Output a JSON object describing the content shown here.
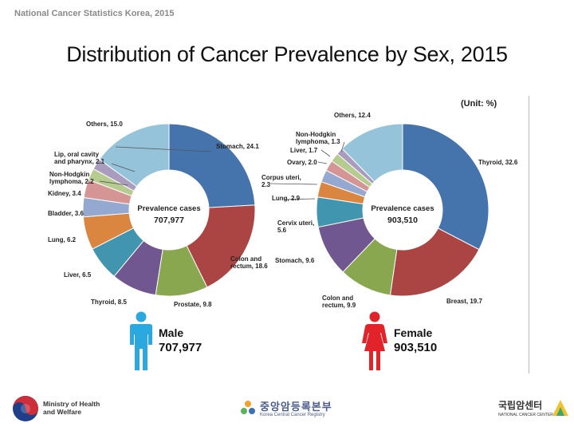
{
  "header": {
    "source": "National Cancer Statistics Korea, 2015",
    "title": "Distribution of Cancer Prevalence by Sex, 2015",
    "unit": "(Unit: %)"
  },
  "chart_data": [
    {
      "type": "pie",
      "name": "Male",
      "title": "Prevalence cases",
      "total_label": "707,977",
      "categories": [
        "Stomach",
        "Colon and rectum",
        "Prostate",
        "Thyroid",
        "Liver",
        "Lung",
        "Bladder",
        "Kidney",
        "Non-Hodgkin lymphoma",
        "Lip, oral cavity and pharynx",
        "Others"
      ],
      "values": [
        24.1,
        18.6,
        9.8,
        8.5,
        6.5,
        6.2,
        3.6,
        3.4,
        2.2,
        2.1,
        15.0
      ],
      "colors": [
        "#4573ac",
        "#aa4543",
        "#89a74f",
        "#70578f",
        "#4195ae",
        "#db8640",
        "#95a9d0",
        "#d59595",
        "#b5cb90",
        "#a99cbe",
        "#94c3da"
      ],
      "labels": [
        "Stomach, 24.1",
        "Colon and rectum, 18.6",
        "Prostate, 9.8",
        "Thyroid, 8.5",
        "Liver, 6.5",
        "Lung, 6.2",
        "Bladder, 3.6",
        "Kidney, 3.4",
        "Non-Hodgkin lymphoma, 2.2",
        "Lip, oral cavity and pharynx, 2.1",
        "Others, 15.0"
      ]
    },
    {
      "type": "pie",
      "name": "Female",
      "title": "Prevalence cases",
      "total_label": "903,510",
      "categories": [
        "Thyroid",
        "Breast",
        "Colon and rectum",
        "Stomach",
        "Cervix uteri",
        "Lung",
        "Corpus uteri",
        "Ovary",
        "Liver",
        "Non-Hodgkin lymphoma",
        "Others"
      ],
      "values": [
        32.6,
        19.7,
        9.9,
        9.6,
        5.6,
        2.9,
        2.3,
        2.0,
        1.7,
        1.3,
        12.4
      ],
      "colors": [
        "#4573ac",
        "#aa4543",
        "#89a74f",
        "#70578f",
        "#4195ae",
        "#db8640",
        "#95a9d0",
        "#d59595",
        "#b5cb90",
        "#a99cbe",
        "#94c3da"
      ],
      "labels": [
        "Thyroid, 32.6",
        "Breast, 19.7",
        "Colon and rectum, 9.9",
        "Stomach, 9.6",
        "Cervix uteri, 5.6",
        "Lung, 2.9",
        "Corpus uteri, 2.3",
        "Ovary, 2.0",
        "Liver, 1.7",
        "Non-Hodgkin lymphoma, 1.3",
        "Others, 12.4"
      ]
    }
  ],
  "legend": {
    "male_label": "Male",
    "male_total": "707,977",
    "female_label": "Female",
    "female_total": "903,510",
    "male_color": "#29a9df",
    "female_color": "#e2232a"
  },
  "footer": {
    "ministry": "Ministry of Health and Welfare",
    "registry_kr": "중앙암등록본부",
    "registry_en": "Korea Central Cancer Registry",
    "ncc_kr": "국립암센터",
    "ncc_en": "NATIONAL CANCER CENTER"
  }
}
